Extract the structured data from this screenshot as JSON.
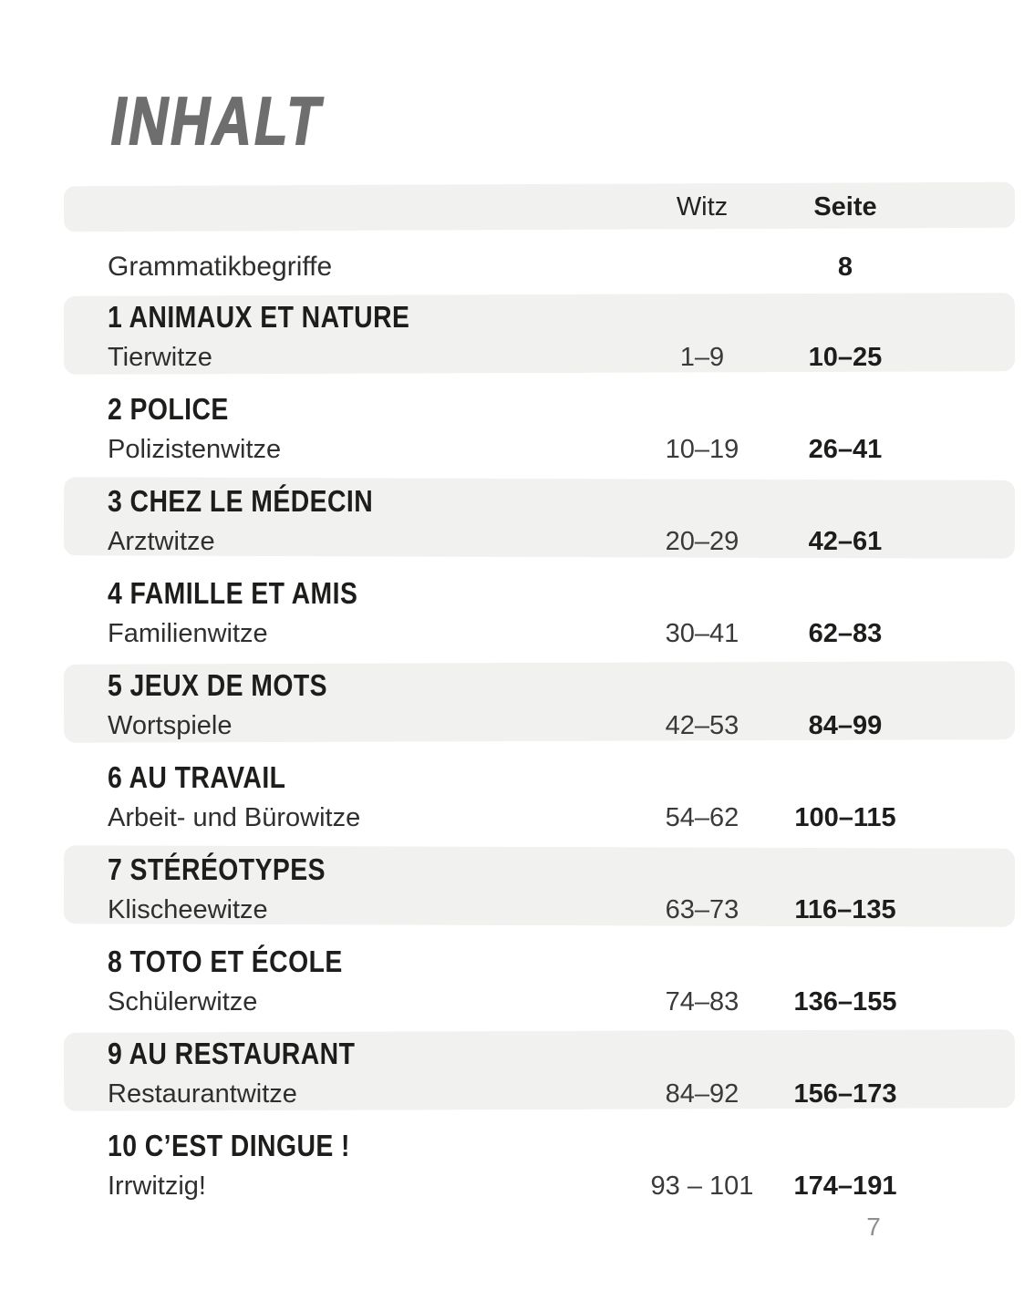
{
  "page": {
    "title": "INHALT",
    "page_number": "7"
  },
  "colors": {
    "title_gray": "#6e6e6e",
    "stripe": "#f1f1f0",
    "text_dark": "#1d1d1b",
    "text_body": "#2f2f2e",
    "page_number_gray": "#8f8f8f"
  },
  "table": {
    "header": {
      "witz": "Witz",
      "seite": "Seite"
    },
    "intro": {
      "label": "Grammatikbegriffe",
      "seite": "8"
    },
    "chapters": [
      {
        "title": "1 ANIMAUX ET NATURE",
        "subtitle": "Tierwitze",
        "witz": "1–9",
        "seite": "10–25"
      },
      {
        "title": "2 POLICE",
        "subtitle": "Polizistenwitze",
        "witz": "10–19",
        "seite": "26–41"
      },
      {
        "title": "3 CHEZ LE MÉDECIN",
        "subtitle": "Arztwitze",
        "witz": "20–29",
        "seite": "42–61"
      },
      {
        "title": "4 FAMILLE ET AMIS",
        "subtitle": "Familienwitze",
        "witz": "30–41",
        "seite": "62–83"
      },
      {
        "title": "5 JEUX DE MOTS",
        "subtitle": "Wortspiele",
        "witz": "42–53",
        "seite": "84–99"
      },
      {
        "title": "6 AU TRAVAIL",
        "subtitle": "Arbeit- und Bürowitze",
        "witz": "54–62",
        "seite": "100–115"
      },
      {
        "title": "7 STÉRÉOTYPES",
        "subtitle": "Klischeewitze",
        "witz": "63–73",
        "seite": "116–135"
      },
      {
        "title": "8 TOTO ET ÉCOLE",
        "subtitle": "Schülerwitze",
        "witz": "74–83",
        "seite": "136–155"
      },
      {
        "title": "9 AU RESTAURANT",
        "subtitle": "Restaurantwitze",
        "witz": "84–92",
        "seite": "156–173"
      },
      {
        "title": "10 C’EST DINGUE !",
        "subtitle": "Irrwitzig!",
        "witz": "93 – 101",
        "seite": "174–191"
      }
    ]
  }
}
